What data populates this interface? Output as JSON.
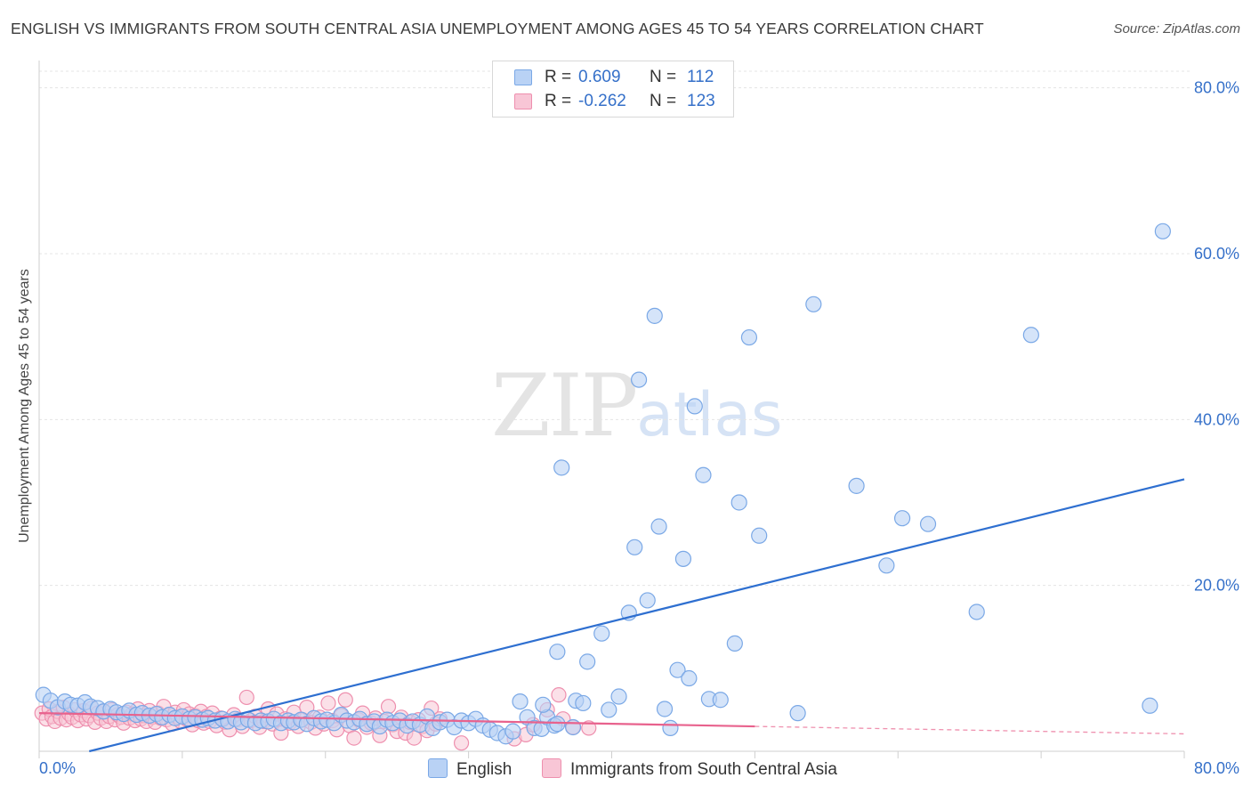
{
  "title": "ENGLISH VS IMMIGRANTS FROM SOUTH CENTRAL ASIA UNEMPLOYMENT AMONG AGES 45 TO 54 YEARS CORRELATION CHART",
  "source": "Source: ZipAtlas.com",
  "watermark": {
    "zip": "ZIP",
    "atlas": "atlas"
  },
  "colors": {
    "english_fill": "#b9d2f5",
    "english_stroke": "#7aa8e6",
    "english_line": "#2e6fd0",
    "immigrants_fill": "#f8c6d6",
    "immigrants_stroke": "#ee8fae",
    "immigrants_line": "#e8628d",
    "grid": "#e4e4e4",
    "axis_text": "#3570c9"
  },
  "legend": {
    "rows": [
      {
        "r_label": "R =",
        "r_value": "0.609",
        "n_label": "N =",
        "n_value": "112"
      },
      {
        "r_label": "R =",
        "r_value": "-0.262",
        "n_label": "N =",
        "n_value": "123"
      }
    ]
  },
  "bottom_legend": {
    "english": "English",
    "immigrants": "Immigrants from South Central Asia"
  },
  "chart_data": {
    "type": "scatter",
    "title": "ENGLISH VS IMMIGRANTS FROM SOUTH CENTRAL ASIA UNEMPLOYMENT AMONG AGES 45 TO 54 YEARS CORRELATION CHART",
    "xlabel": "",
    "ylabel": "Unemployment Among Ages 45 to 54 years",
    "xlim": [
      0,
      80
    ],
    "ylim": [
      0,
      82
    ],
    "x_ticks": [
      {
        "value": 0,
        "label": "0.0%"
      },
      {
        "value": 80,
        "label": "80.0%"
      }
    ],
    "y_ticks": [
      {
        "value": 20,
        "label": "20.0%"
      },
      {
        "value": 40,
        "label": "40.0%"
      },
      {
        "value": 60,
        "label": "60.0%"
      },
      {
        "value": 80,
        "label": "80.0%"
      }
    ],
    "grid": true,
    "legend_position": "top-center",
    "series": [
      {
        "name": "English",
        "r": 0.609,
        "n": 112,
        "trend": {
          "x": [
            0,
            80
          ],
          "y": [
            -1.5,
            32.8
          ],
          "style": "solid"
        },
        "points": [
          [
            0.3,
            6.8
          ],
          [
            0.8,
            6.1
          ],
          [
            1.3,
            5.3
          ],
          [
            1.8,
            6.0
          ],
          [
            2.2,
            5.6
          ],
          [
            2.7,
            5.5
          ],
          [
            3.2,
            5.9
          ],
          [
            3.6,
            5.4
          ],
          [
            4.1,
            5.2
          ],
          [
            4.5,
            4.8
          ],
          [
            5.0,
            5.1
          ],
          [
            5.4,
            4.7
          ],
          [
            5.9,
            4.5
          ],
          [
            6.3,
            4.9
          ],
          [
            6.8,
            4.4
          ],
          [
            7.2,
            4.6
          ],
          [
            7.7,
            4.3
          ],
          [
            8.2,
            4.5
          ],
          [
            8.6,
            4.1
          ],
          [
            9.1,
            4.4
          ],
          [
            9.5,
            4.0
          ],
          [
            10.0,
            4.2
          ],
          [
            10.5,
            3.9
          ],
          [
            10.9,
            4.1
          ],
          [
            11.4,
            3.8
          ],
          [
            11.8,
            4.0
          ],
          [
            12.3,
            3.7
          ],
          [
            12.8,
            3.9
          ],
          [
            13.2,
            3.6
          ],
          [
            13.7,
            3.9
          ],
          [
            14.1,
            3.5
          ],
          [
            14.6,
            3.8
          ],
          [
            15.1,
            3.4
          ],
          [
            15.5,
            3.7
          ],
          [
            16.0,
            3.6
          ],
          [
            16.4,
            3.9
          ],
          [
            16.9,
            3.4
          ],
          [
            17.4,
            3.7
          ],
          [
            17.8,
            3.5
          ],
          [
            18.3,
            3.8
          ],
          [
            18.7,
            3.3
          ],
          [
            19.2,
            4.0
          ],
          [
            19.7,
            3.6
          ],
          [
            20.1,
            3.8
          ],
          [
            20.6,
            3.4
          ],
          [
            21.1,
            4.4
          ],
          [
            21.5,
            3.7
          ],
          [
            22.0,
            3.5
          ],
          [
            22.4,
            3.9
          ],
          [
            22.9,
            3.3
          ],
          [
            23.4,
            3.6
          ],
          [
            23.8,
            3.0
          ],
          [
            24.3,
            3.8
          ],
          [
            24.7,
            3.4
          ],
          [
            25.2,
            3.7
          ],
          [
            25.7,
            3.1
          ],
          [
            26.1,
            3.6
          ],
          [
            26.6,
            3.2
          ],
          [
            27.1,
            4.2
          ],
          [
            27.5,
            2.8
          ],
          [
            28.0,
            3.5
          ],
          [
            28.5,
            3.8
          ],
          [
            29.0,
            2.9
          ],
          [
            29.5,
            3.7
          ],
          [
            30.0,
            3.4
          ],
          [
            30.5,
            3.9
          ],
          [
            31.0,
            3.1
          ],
          [
            31.5,
            2.6
          ],
          [
            32.0,
            2.2
          ],
          [
            32.6,
            1.8
          ],
          [
            33.1,
            2.4
          ],
          [
            33.6,
            6.0
          ],
          [
            34.1,
            4.1
          ],
          [
            34.6,
            2.8
          ],
          [
            35.1,
            2.7
          ],
          [
            35.5,
            4.1
          ],
          [
            36.0,
            3.1
          ],
          [
            35.2,
            5.6
          ],
          [
            36.2,
            3.3
          ],
          [
            36.5,
            34.2
          ],
          [
            37.3,
            2.9
          ],
          [
            36.2,
            12.0
          ],
          [
            37.5,
            6.1
          ],
          [
            38.0,
            5.8
          ],
          [
            38.3,
            10.8
          ],
          [
            39.3,
            14.2
          ],
          [
            39.8,
            5.0
          ],
          [
            40.5,
            6.6
          ],
          [
            41.2,
            16.7
          ],
          [
            41.6,
            24.6
          ],
          [
            41.9,
            44.8
          ],
          [
            42.5,
            18.2
          ],
          [
            43.0,
            52.5
          ],
          [
            43.3,
            27.1
          ],
          [
            43.7,
            5.1
          ],
          [
            44.1,
            2.8
          ],
          [
            44.6,
            9.8
          ],
          [
            45.0,
            23.2
          ],
          [
            45.4,
            8.8
          ],
          [
            45.8,
            41.6
          ],
          [
            46.4,
            33.3
          ],
          [
            46.8,
            6.3
          ],
          [
            47.6,
            6.2
          ],
          [
            48.6,
            13.0
          ],
          [
            48.9,
            30.0
          ],
          [
            49.6,
            49.9
          ],
          [
            50.3,
            26.0
          ],
          [
            53.0,
            4.6
          ],
          [
            54.1,
            53.9
          ],
          [
            57.1,
            32.0
          ],
          [
            59.2,
            22.4
          ],
          [
            60.3,
            28.1
          ],
          [
            62.1,
            27.4
          ],
          [
            65.5,
            16.8
          ],
          [
            69.3,
            50.2
          ],
          [
            77.6,
            5.5
          ],
          [
            78.5,
            62.7
          ]
        ]
      },
      {
        "name": "Immigrants from South Central Asia",
        "r": -0.262,
        "n": 123,
        "trend": {
          "x": [
            0,
            50
          ],
          "y": [
            4.6,
            3.0
          ],
          "style": "solid",
          "dashed_extension": {
            "x": [
              50,
              80
            ],
            "y": [
              3.0,
              2.1
            ]
          }
        },
        "points": [
          [
            0.2,
            4.6
          ],
          [
            0.5,
            3.9
          ],
          [
            0.7,
            5.1
          ],
          [
            0.9,
            4.2
          ],
          [
            1.1,
            3.6
          ],
          [
            1.3,
            4.8
          ],
          [
            1.5,
            4.0
          ],
          [
            1.7,
            5.3
          ],
          [
            1.9,
            3.8
          ],
          [
            2.1,
            4.5
          ],
          [
            2.3,
            4.1
          ],
          [
            2.5,
            5.0
          ],
          [
            2.7,
            3.7
          ],
          [
            2.9,
            4.4
          ],
          [
            3.1,
            4.9
          ],
          [
            3.3,
            3.9
          ],
          [
            3.5,
            4.3
          ],
          [
            3.7,
            5.2
          ],
          [
            3.9,
            3.5
          ],
          [
            4.1,
            4.6
          ],
          [
            4.3,
            4.0
          ],
          [
            4.5,
            4.8
          ],
          [
            4.7,
            3.6
          ],
          [
            4.9,
            4.2
          ],
          [
            5.1,
            5.0
          ],
          [
            5.3,
            3.8
          ],
          [
            5.5,
            4.4
          ],
          [
            5.7,
            4.1
          ],
          [
            5.9,
            3.4
          ],
          [
            6.1,
            4.7
          ],
          [
            6.3,
            4.0
          ],
          [
            6.5,
            4.5
          ],
          [
            6.7,
            3.7
          ],
          [
            6.9,
            5.1
          ],
          [
            7.1,
            3.9
          ],
          [
            7.3,
            4.3
          ],
          [
            7.5,
            3.6
          ],
          [
            7.7,
            4.9
          ],
          [
            7.9,
            4.1
          ],
          [
            8.1,
            3.5
          ],
          [
            8.3,
            4.6
          ],
          [
            8.5,
            4.0
          ],
          [
            8.7,
            5.4
          ],
          [
            8.9,
            3.8
          ],
          [
            9.1,
            4.4
          ],
          [
            9.3,
            3.3
          ],
          [
            9.5,
            4.7
          ],
          [
            9.7,
            4.1
          ],
          [
            9.9,
            3.6
          ],
          [
            10.1,
            5.0
          ],
          [
            10.3,
            3.9
          ],
          [
            10.5,
            4.5
          ],
          [
            10.7,
            3.2
          ],
          [
            10.9,
            4.3
          ],
          [
            11.1,
            3.7
          ],
          [
            11.3,
            4.8
          ],
          [
            11.5,
            3.4
          ],
          [
            11.7,
            4.2
          ],
          [
            11.9,
            3.6
          ],
          [
            12.1,
            4.6
          ],
          [
            12.4,
            3.1
          ],
          [
            12.7,
            4.0
          ],
          [
            13.0,
            3.5
          ],
          [
            13.3,
            2.6
          ],
          [
            13.6,
            4.4
          ],
          [
            13.9,
            3.8
          ],
          [
            14.2,
            3.0
          ],
          [
            14.5,
            6.5
          ],
          [
            14.8,
            3.7
          ],
          [
            15.1,
            4.2
          ],
          [
            15.4,
            2.9
          ],
          [
            15.7,
            3.6
          ],
          [
            16.0,
            5.1
          ],
          [
            16.3,
            3.3
          ],
          [
            16.6,
            4.5
          ],
          [
            16.9,
            2.2
          ],
          [
            17.2,
            3.9
          ],
          [
            17.5,
            3.4
          ],
          [
            17.8,
            4.7
          ],
          [
            18.1,
            3.0
          ],
          [
            18.4,
            3.8
          ],
          [
            18.7,
            5.3
          ],
          [
            19.0,
            3.5
          ],
          [
            19.3,
            2.8
          ],
          [
            19.6,
            4.1
          ],
          [
            19.9,
            3.3
          ],
          [
            20.2,
            5.8
          ],
          [
            20.5,
            3.7
          ],
          [
            20.8,
            2.6
          ],
          [
            21.1,
            4.3
          ],
          [
            21.4,
            6.2
          ],
          [
            21.7,
            3.1
          ],
          [
            22.0,
            1.6
          ],
          [
            22.3,
            3.8
          ],
          [
            22.6,
            4.6
          ],
          [
            22.9,
            2.9
          ],
          [
            23.2,
            3.4
          ],
          [
            23.5,
            4.0
          ],
          [
            23.8,
            1.9
          ],
          [
            24.1,
            3.6
          ],
          [
            24.4,
            5.4
          ],
          [
            24.7,
            3.2
          ],
          [
            25.0,
            2.4
          ],
          [
            25.3,
            4.1
          ],
          [
            25.6,
            2.2
          ],
          [
            25.9,
            3.5
          ],
          [
            26.2,
            1.6
          ],
          [
            26.5,
            3.8
          ],
          [
            26.8,
            3.0
          ],
          [
            27.1,
            2.5
          ],
          [
            27.4,
            5.2
          ],
          [
            27.7,
            3.3
          ],
          [
            28.0,
            3.9
          ],
          [
            29.5,
            1.0
          ],
          [
            33.2,
            1.5
          ],
          [
            34.0,
            2.0
          ],
          [
            34.5,
            3.2
          ],
          [
            35.5,
            5.0
          ],
          [
            36.3,
            6.8
          ],
          [
            36.6,
            3.9
          ],
          [
            37.3,
            2.9
          ],
          [
            38.4,
            2.8
          ]
        ]
      }
    ]
  }
}
